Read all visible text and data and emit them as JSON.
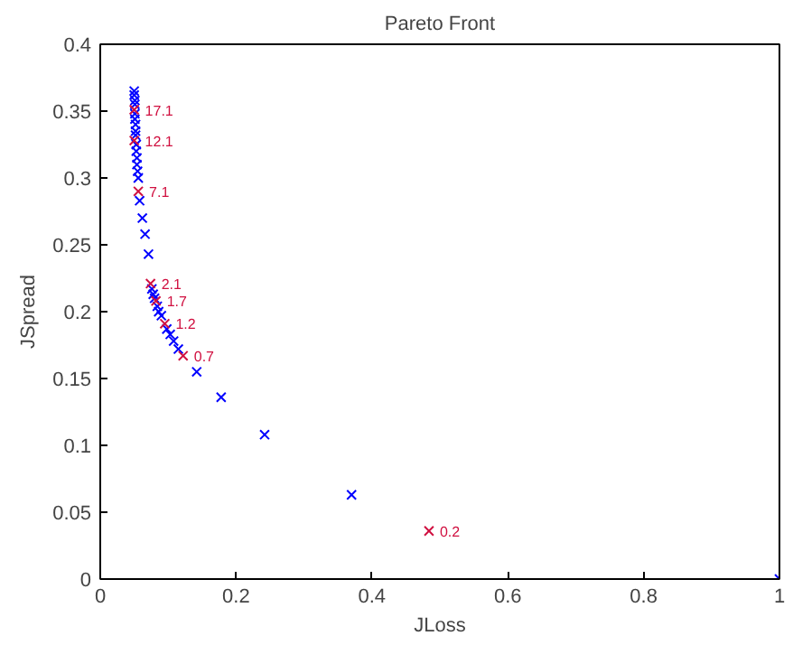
{
  "chart_data": {
    "type": "scatter",
    "title": "Pareto Front",
    "xlabel": "JLoss",
    "ylabel": "JSpread",
    "xlim": [
      0,
      1
    ],
    "ylim": [
      0,
      0.4
    ],
    "xticks": [
      0,
      0.2,
      0.4,
      0.6,
      0.8,
      1
    ],
    "yticks": [
      0,
      0.05,
      0.1,
      0.15,
      0.2,
      0.25,
      0.3,
      0.35,
      0.4
    ],
    "grid": false,
    "marker": "cross",
    "series": [
      {
        "color": "#0000ff",
        "x": [
          0.05,
          0.05,
          0.051,
          0.051,
          0.051,
          0.051,
          0.052,
          0.052,
          0.052,
          0.053,
          0.053,
          0.054,
          0.054,
          0.055,
          0.056,
          0.058,
          0.062,
          0.066,
          0.071,
          0.076,
          0.078,
          0.08,
          0.084,
          0.086,
          0.09,
          0.098,
          0.103,
          0.108,
          0.115,
          0.142,
          0.178,
          0.242,
          0.37,
          1.0
        ],
        "values": [
          0.365,
          0.362,
          0.358,
          0.355,
          0.348,
          0.344,
          0.34,
          0.335,
          0.332,
          0.325,
          0.32,
          0.315,
          0.31,
          0.305,
          0.3,
          0.283,
          0.27,
          0.258,
          0.243,
          0.217,
          0.213,
          0.21,
          0.204,
          0.2,
          0.197,
          0.187,
          0.183,
          0.178,
          0.172,
          0.155,
          0.136,
          0.108,
          0.063,
          0.0
        ]
      },
      {
        "color": "#d01040",
        "x": [
          0.05,
          0.05,
          0.056,
          0.074,
          0.082,
          0.095,
          0.122,
          0.484
        ],
        "values": [
          0.351,
          0.328,
          0.29,
          0.221,
          0.208,
          0.191,
          0.167,
          0.036
        ]
      }
    ],
    "annotations": [
      {
        "text": "17.1",
        "x": 0.05,
        "y": 0.351
      },
      {
        "text": "12.1",
        "x": 0.05,
        "y": 0.328
      },
      {
        "text": "7.1",
        "x": 0.056,
        "y": 0.29
      },
      {
        "text": "2.1",
        "x": 0.074,
        "y": 0.221
      },
      {
        "text": "1.7",
        "x": 0.082,
        "y": 0.208
      },
      {
        "text": "1.2",
        "x": 0.095,
        "y": 0.191
      },
      {
        "text": "0.7",
        "x": 0.122,
        "y": 0.167
      },
      {
        "text": "0.2",
        "x": 0.484,
        "y": 0.036
      }
    ]
  }
}
